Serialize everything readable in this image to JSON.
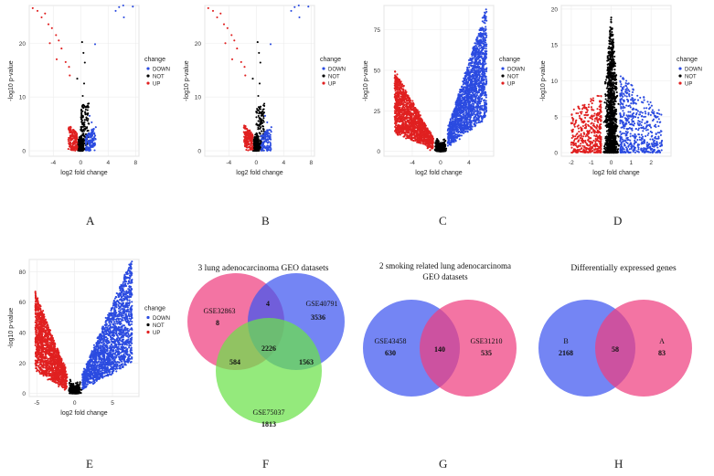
{
  "figure": {
    "panel_letters": [
      "A",
      "B",
      "C",
      "D",
      "E",
      "F",
      "G",
      "H"
    ]
  },
  "chart_data": [
    {
      "id": "A",
      "type": "scatter",
      "xlabel": "log2 fold change",
      "ylabel": "-log10 p-value",
      "xlim": [
        -7.5,
        8.5
      ],
      "ylim": [
        -1,
        27
      ],
      "xticks": [
        -4,
        0,
        4,
        8
      ],
      "yticks": [
        0,
        10,
        20
      ],
      "legend": {
        "title": "change",
        "entries": [
          "DOWN",
          "NOT",
          "UP"
        ]
      },
      "colors": {
        "DOWN": "#2b4be0",
        "NOT": "#000000",
        "UP": "#e02020"
      },
      "cloud": {
        "core_width": 1.2,
        "core_height": 3.5,
        "spike_top": 16,
        "left_red_extent": 1.8,
        "right_blue_extent": 2.2
      },
      "outliers": {
        "UP": [
          [
            -7,
            26.5
          ],
          [
            -6.3,
            26
          ],
          [
            -5.2,
            25.5
          ],
          [
            -5.7,
            24.8
          ],
          [
            -4.7,
            23.5
          ],
          [
            -4.2,
            22.8
          ],
          [
            -3.6,
            21.5
          ],
          [
            -3.2,
            20.5
          ],
          [
            -2.8,
            19
          ],
          [
            -4.5,
            20
          ],
          [
            -2.2,
            16.5
          ],
          [
            -1.7,
            15.6
          ],
          [
            -3.5,
            17
          ],
          [
            -1.6,
            14
          ]
        ],
        "DOWN": [
          [
            5.1,
            26
          ],
          [
            5.6,
            26.7
          ],
          [
            6.2,
            27
          ],
          [
            7.6,
            26.8
          ],
          [
            6.3,
            24.8
          ],
          [
            2.1,
            19.8
          ],
          [
            1.3,
            6.5
          ],
          [
            1.6,
            5.3
          ],
          [
            2.2,
            4.4
          ]
        ],
        "NOT": [
          [
            0.2,
            20.2
          ],
          [
            0.4,
            18.2
          ],
          [
            0.6,
            16.4
          ],
          [
            0.5,
            12.5
          ],
          [
            -0.5,
            13.4
          ],
          [
            0.3,
            10.2
          ]
        ]
      }
    },
    {
      "id": "B",
      "type": "scatter",
      "xlabel": "log2 fold change",
      "ylabel": "-log10 p-value",
      "xlim": [
        -7.5,
        8.5
      ],
      "ylim": [
        -1,
        27
      ],
      "xticks": [
        -4,
        0,
        4,
        8
      ],
      "yticks": [
        0,
        10,
        20
      ],
      "legend": {
        "title": "change",
        "entries": [
          "DOWN",
          "NOT",
          "UP"
        ]
      },
      "colors": {
        "DOWN": "#2b4be0",
        "NOT": "#000000",
        "UP": "#e02020"
      },
      "cloud": {
        "core_width": 1.2,
        "core_height": 3.5,
        "spike_top": 16,
        "left_red_extent": 1.8,
        "right_blue_extent": 2.2
      },
      "outliers": {
        "UP": [
          [
            -7,
            26.5
          ],
          [
            -6.3,
            26
          ],
          [
            -5.2,
            25.5
          ],
          [
            -5.7,
            24.8
          ],
          [
            -4.7,
            23.5
          ],
          [
            -4.2,
            22.8
          ],
          [
            -3.6,
            21.5
          ],
          [
            -3.2,
            20.5
          ],
          [
            -2.8,
            19
          ],
          [
            -4.5,
            20
          ],
          [
            -2.2,
            16.5
          ],
          [
            -1.7,
            15.6
          ],
          [
            -3.5,
            17
          ],
          [
            -1.6,
            14
          ]
        ],
        "DOWN": [
          [
            5.1,
            26
          ],
          [
            5.6,
            26.7
          ],
          [
            6.2,
            27
          ],
          [
            7.6,
            26.8
          ],
          [
            6.3,
            24.8
          ],
          [
            2.1,
            19.8
          ],
          [
            1.3,
            6.5
          ],
          [
            1.6,
            5.3
          ],
          [
            2.2,
            4.4
          ]
        ],
        "NOT": [
          [
            0.2,
            20.2
          ],
          [
            0.4,
            18.2
          ],
          [
            0.6,
            16.4
          ],
          [
            0.5,
            12.5
          ],
          [
            -0.5,
            13.4
          ],
          [
            0.3,
            10.2
          ]
        ]
      }
    },
    {
      "id": "C",
      "type": "scatter",
      "xlabel": "log2 fold change",
      "ylabel": "-log10 p-value",
      "xlim": [
        -8,
        7.5
      ],
      "ylim": [
        -3,
        90
      ],
      "xticks": [
        -4,
        0,
        4
      ],
      "yticks": [
        0,
        25,
        50,
        75
      ],
      "legend": {
        "title": "change",
        "entries": [
          "DOWN",
          "NOT",
          "UP"
        ]
      },
      "colors": {
        "DOWN": "#2b4be0",
        "NOT": "#000000",
        "UP": "#e02020"
      },
      "cloud": {
        "shape": "v",
        "left_extent": -6.5,
        "right_extent": 6.5,
        "left_top": 45,
        "right_top": 85,
        "black_halfwidth": 1.0
      }
    },
    {
      "id": "D",
      "type": "scatter",
      "xlabel": "log2 fold change",
      "ylabel": "-log10 p-value",
      "xlim": [
        -2.5,
        3.0
      ],
      "ylim": [
        -0.5,
        20.5
      ],
      "xticks": [
        -2,
        -1,
        0,
        1,
        2
      ],
      "yticks": [
        0,
        5,
        10,
        15,
        20
      ],
      "legend": {
        "title": "change",
        "entries": [
          "DOWN",
          "NOT",
          "UP"
        ]
      },
      "colors": {
        "DOWN": "#2b4be0",
        "NOT": "#000000",
        "UP": "#e02020"
      },
      "cloud": {
        "shape": "spike",
        "spike_top": 19,
        "black_halfwidth": 0.45,
        "left_extent": -2.0,
        "right_extent": 2.6
      }
    },
    {
      "id": "E",
      "type": "scatter",
      "xlabel": "log2 fold change",
      "ylabel": "-log10 p-value",
      "xlim": [
        -6,
        8.5
      ],
      "ylim": [
        -2,
        88
      ],
      "xticks": [
        -5,
        0,
        5
      ],
      "yticks": [
        0,
        20,
        40,
        60,
        80
      ],
      "legend": {
        "title": "change",
        "entries": [
          "DOWN",
          "NOT",
          "UP"
        ]
      },
      "colors": {
        "DOWN": "#2b4be0",
        "NOT": "#000000",
        "UP": "#e02020"
      },
      "cloud": {
        "shape": "v",
        "left_extent": -5.2,
        "right_extent": 7.6,
        "left_top": 60,
        "right_top": 85,
        "black_halfwidth": 1.0
      }
    },
    {
      "id": "F",
      "type": "venn",
      "title": "3 lung adenocarcinoma GEO datasets",
      "sets": [
        {
          "label": "GSE32863",
          "only": "8",
          "color": "#ef3f80"
        },
        {
          "label": "GSE40791",
          "only": "3536",
          "color": "#3f56f0"
        },
        {
          "label": "GSE75037",
          "only": "1813",
          "color": "#6be24a"
        }
      ],
      "intersections": {
        "ab": "4",
        "ac": "584",
        "bc": "1563",
        "abc": "2226"
      }
    },
    {
      "id": "G",
      "type": "venn",
      "title_lines": [
        "2 smoking related lung adenocarcinoma",
        "GEO datasets"
      ],
      "sets": [
        {
          "label": "GSE43458",
          "only": "630",
          "color": "#3f56f0"
        },
        {
          "label": "GSE31210",
          "only": "535",
          "color": "#ef3f80"
        }
      ],
      "intersections": {
        "ab": "140"
      }
    },
    {
      "id": "H",
      "type": "venn",
      "title": "Differentially expressed genes",
      "sets": [
        {
          "label": "B",
          "only": "2168",
          "color": "#3f56f0"
        },
        {
          "label": "A",
          "only": "83",
          "color": "#ef3f80"
        }
      ],
      "intersections": {
        "ab": "58"
      }
    }
  ]
}
